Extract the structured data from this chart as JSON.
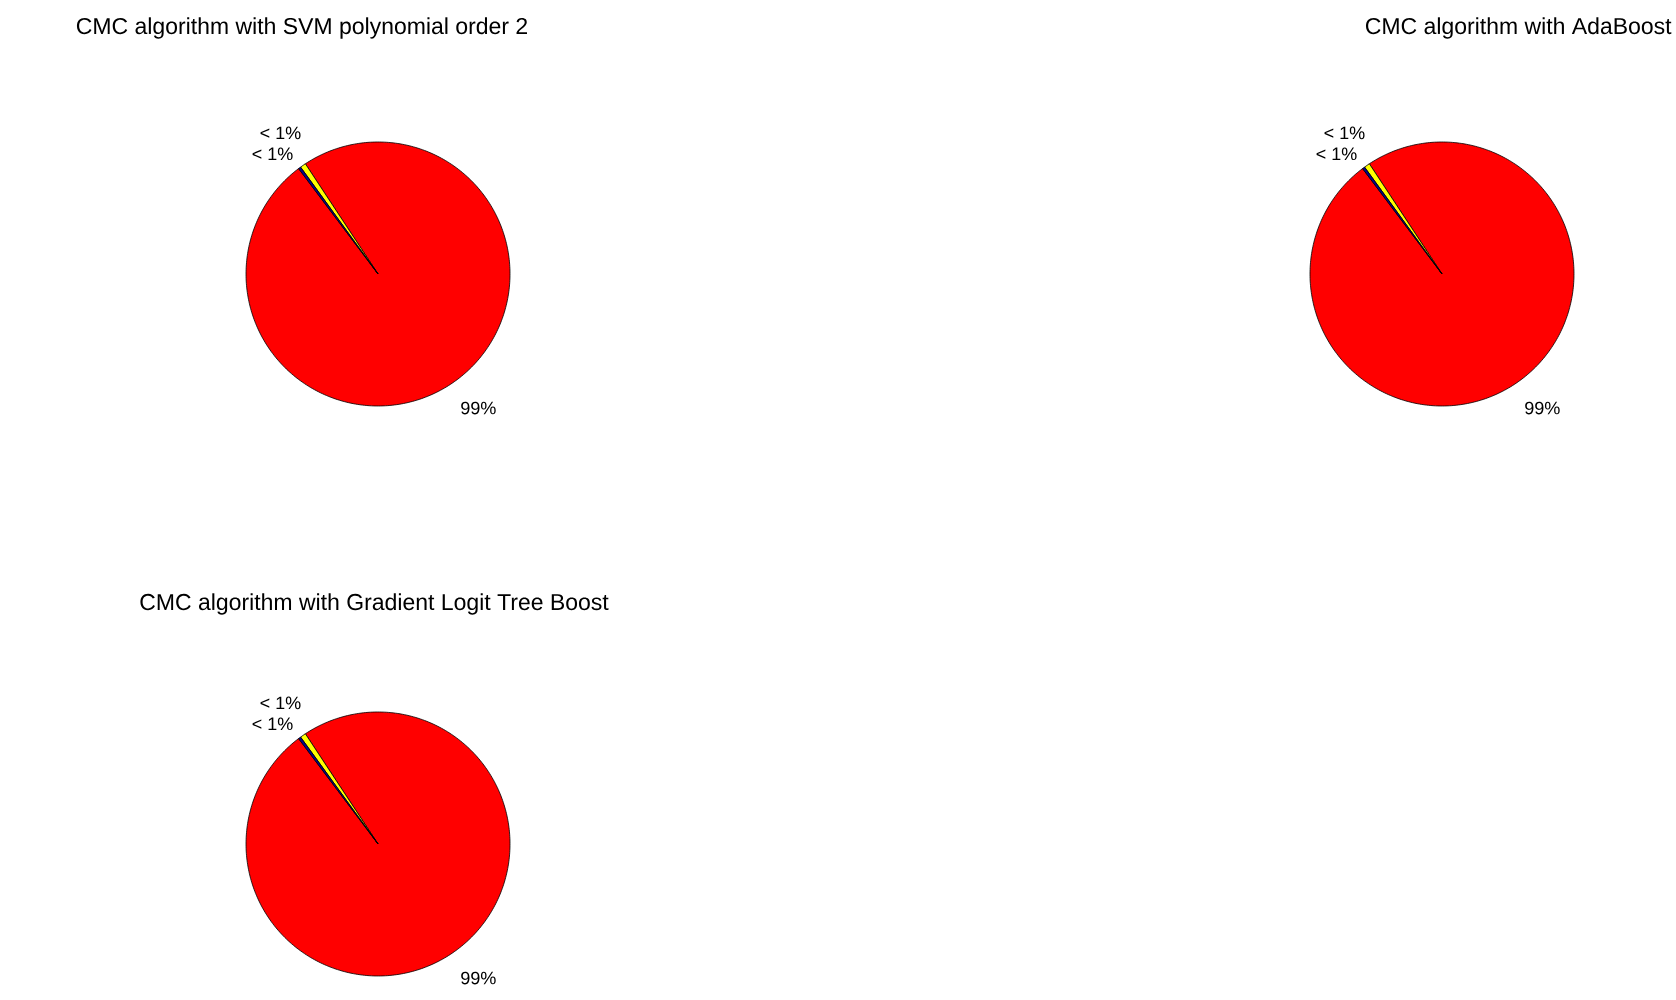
{
  "chart_data": [
    {
      "type": "pie",
      "title": "CMC algorithm with SVM polynomial order 2",
      "categories": [
        null,
        null,
        null
      ],
      "values": [
        0.3,
        0.7,
        99
      ],
      "colors": [
        "#00008f",
        "#ffff00",
        "#ff0000"
      ],
      "value_labels": [
        "< 1%",
        "< 1%",
        "99%"
      ]
    },
    {
      "type": "pie",
      "title": "CMC algorithm with AdaBoost",
      "categories": [
        null,
        null,
        null
      ],
      "values": [
        0.3,
        0.7,
        99
      ],
      "colors": [
        "#00008f",
        "#ffff00",
        "#ff0000"
      ],
      "value_labels": [
        "< 1%",
        "< 1%",
        "99%"
      ]
    },
    {
      "type": "pie",
      "title": "CMC algorithm with Gradient Logit Tree Boost",
      "categories": [
        null,
        null,
        null
      ],
      "values": [
        0.3,
        0.7,
        99
      ],
      "colors": [
        "#00008f",
        "#ffff00",
        "#ff0000"
      ],
      "value_labels": [
        "< 1%",
        "< 1%",
        "99%"
      ]
    }
  ]
}
